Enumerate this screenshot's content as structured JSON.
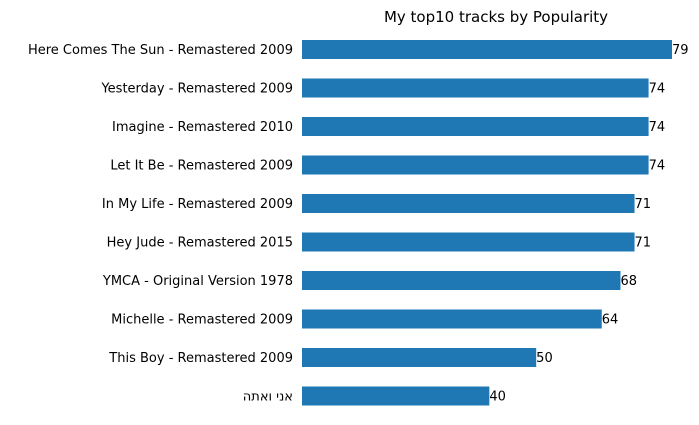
{
  "chart_data": {
    "type": "bar",
    "orientation": "horizontal",
    "title": "My top10 tracks by Popularity",
    "xlabel": "",
    "ylabel": "",
    "categories": [
      "Here Comes The Sun - Remastered 2009",
      "Yesterday - Remastered 2009",
      "Imagine - Remastered 2010",
      "Let It Be - Remastered 2009",
      "In My Life - Remastered 2009",
      "Hey Jude - Remastered 2015",
      "YMCA - Original Version 1978",
      "Michelle - Remastered 2009",
      "This Boy - Remastered 2009",
      "אני ואתה"
    ],
    "values": [
      79,
      74,
      74,
      74,
      71,
      71,
      68,
      64,
      50,
      40
    ],
    "data_labels": [
      "79",
      "74",
      "74",
      "74",
      "71",
      "71",
      "68",
      "64",
      "50",
      "40"
    ],
    "xlim": [
      0,
      79
    ],
    "bar_color": "#1f77b4",
    "grid": false,
    "axes_visible": false,
    "legend": "none"
  }
}
